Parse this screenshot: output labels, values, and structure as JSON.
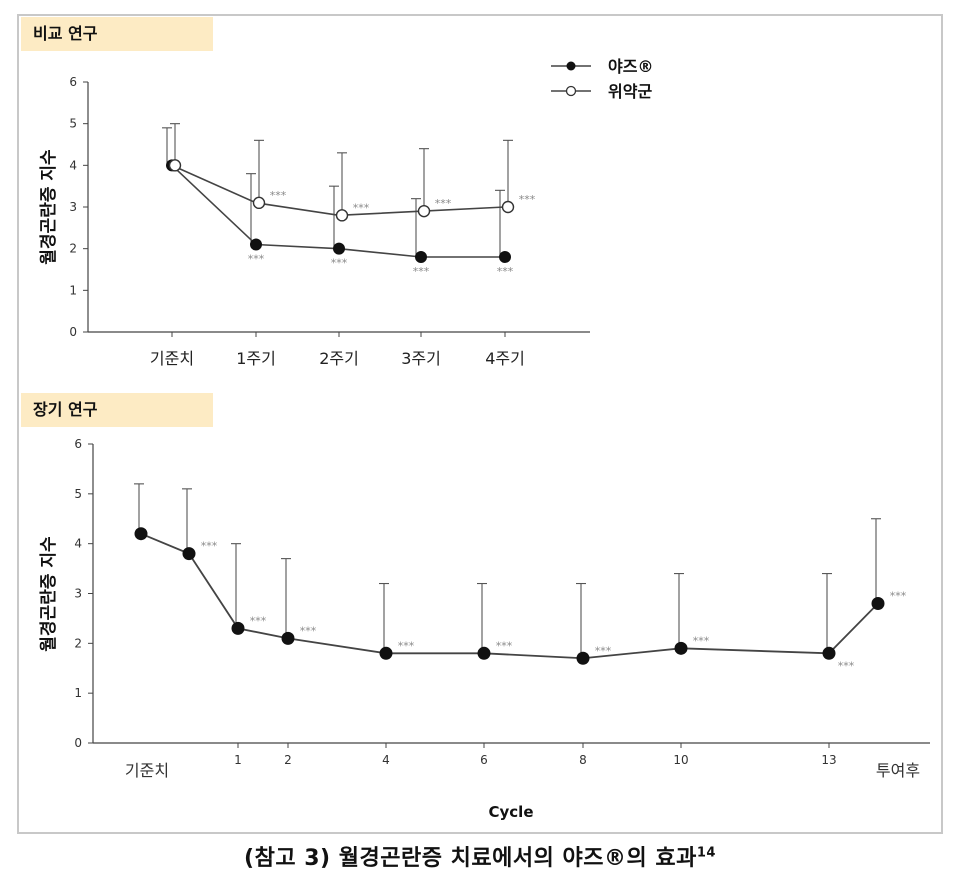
{
  "caption": {
    "text": "(참고 3) 월경곤란증 치료에서의 야즈®의 효과",
    "ref": "14"
  },
  "chart_data": [
    {
      "type": "line",
      "title": "비교 연구",
      "xlabel": "",
      "ylabel": "월경곤란증 지수",
      "ylim": [
        0,
        6
      ],
      "yticks": [
        "0",
        "1",
        "2",
        "3",
        "4",
        "5",
        "6"
      ],
      "categories": [
        "기준치",
        "1주기",
        "2주기",
        "3주기",
        "4주기"
      ],
      "legend_position": "top-right",
      "series": [
        {
          "name": "야즈®",
          "marker": "filled",
          "values": [
            4.0,
            2.1,
            2.0,
            1.8,
            1.8
          ],
          "error_upper": [
            4.9,
            3.8,
            3.5,
            3.2,
            3.4
          ],
          "annotations": [
            "",
            "***",
            "***",
            "***",
            "***"
          ]
        },
        {
          "name": "위약군",
          "marker": "open",
          "values": [
            4.0,
            3.1,
            2.8,
            2.9,
            3.0
          ],
          "error_upper": [
            5.0,
            4.6,
            4.3,
            4.4,
            4.6
          ],
          "annotations": [
            "",
            "***",
            "***",
            "***",
            "***"
          ]
        }
      ]
    },
    {
      "type": "line",
      "title": "장기 연구",
      "xlabel": "Cycle",
      "ylabel": "월경곤란증 지수",
      "ylim": [
        0,
        6
      ],
      "yticks": [
        "0",
        "1",
        "2",
        "3",
        "4",
        "5",
        "6"
      ],
      "x_tick_labels": [
        "기준치",
        "1",
        "2",
        "4",
        "6",
        "8",
        "10",
        "13",
        "투여후"
      ],
      "series": [
        {
          "marker": "filled",
          "values": [
            4.2,
            3.8,
            2.3,
            2.1,
            1.8,
            1.8,
            1.7,
            1.9,
            1.8,
            2.8
          ],
          "error_upper": [
            5.2,
            5.1,
            4.0,
            3.7,
            3.2,
            3.2,
            3.2,
            3.4,
            3.4,
            4.5
          ],
          "annotations": [
            "",
            "***",
            "***",
            "***",
            "***",
            "***",
            "***",
            "***",
            "***",
            "***"
          ]
        }
      ]
    }
  ]
}
